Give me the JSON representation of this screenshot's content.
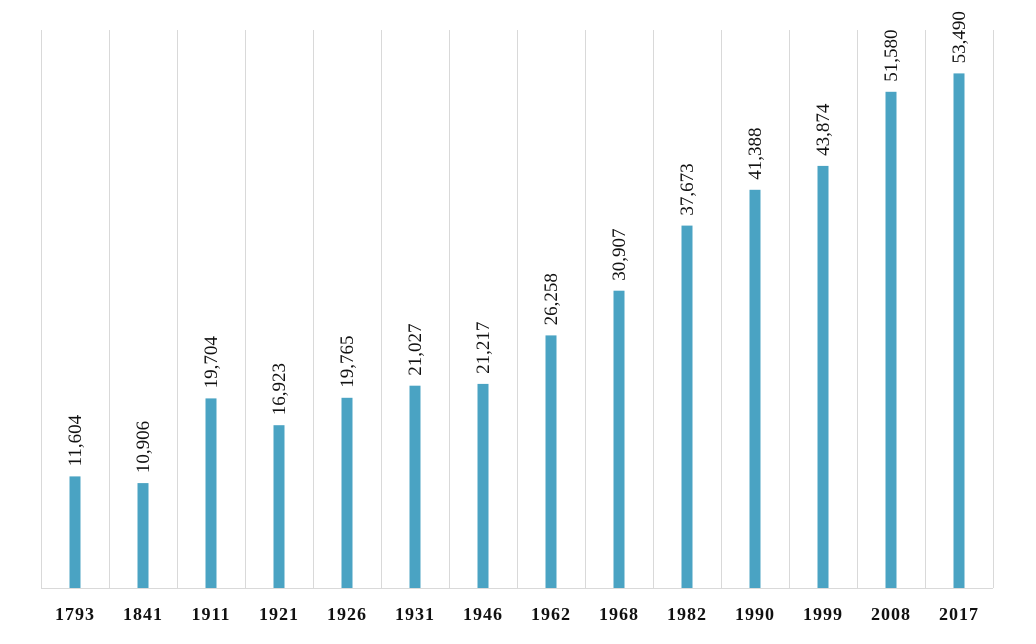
{
  "chart_data": {
    "type": "bar",
    "title": "",
    "xlabel": "",
    "ylabel": "",
    "categories": [
      "1793",
      "1841",
      "1911",
      "1921",
      "1926",
      "1931",
      "1946",
      "1962",
      "1968",
      "1982",
      "1990",
      "1999",
      "2008",
      "2017"
    ],
    "values": [
      11604,
      10906,
      19704,
      16923,
      19765,
      21027,
      21217,
      26258,
      30907,
      37673,
      41388,
      43874,
      51580,
      53490
    ],
    "value_labels": [
      "11,604",
      "10,906",
      "19,704",
      "16,923",
      "19,765",
      "21,027",
      "21,217",
      "26,258",
      "30,907",
      "37,673",
      "41,388",
      "43,874",
      "51,580",
      "53,490"
    ],
    "ylim": [
      0,
      58000
    ],
    "grid": "vertical",
    "legend": "none",
    "bar_color": "#4aa3c3",
    "grid_color": "#d9d9d9"
  }
}
